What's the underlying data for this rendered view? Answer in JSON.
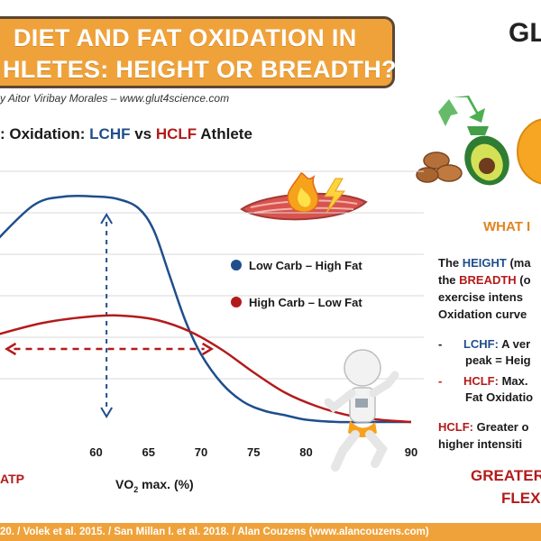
{
  "header": {
    "title_line1": "DIET AND FAT OXIDATION IN",
    "title_line2": "HLETES: HEIGHT OR BREADTH?",
    "brand": "GL",
    "byline": "y Aitor Viribay Morales – www.glut4science.com"
  },
  "chart_title": {
    "prefix": ": Oxidation: ",
    "lchf": "LCHF",
    "vs": " vs ",
    "hclf": "HCLF",
    "suffix": " Athlete"
  },
  "colors": {
    "lchf": "#1f4e8c",
    "hclf": "#b31b1b",
    "accent": "#f0a23a",
    "grid": "#d9d9d9"
  },
  "chart_data": {
    "type": "line",
    "title": "Oxidation: LCHF vs HCLF Athlete",
    "xlabel": "VO2 max. (%)",
    "xlabel_main": "VO",
    "xlabel_sub": "2",
    "xlabel_rest": " max. (%)",
    "xlim": [
      50,
      90
    ],
    "ylim": [
      0,
      1
    ],
    "x_ticks": [
      60,
      65,
      70,
      75,
      80,
      90
    ],
    "x_tick_labels": [
      "60",
      "65",
      "70",
      "75",
      "80",
      "90"
    ],
    "series": [
      {
        "name": "Low Carb – High Fat",
        "color": "#1f4e8c",
        "x": [
          50,
          54,
          57,
          60,
          62,
          64,
          65.5,
          67,
          68.5,
          70,
          72,
          74,
          76,
          78,
          80,
          83,
          86,
          90
        ],
        "values": [
          0.78,
          0.96,
          1.0,
          1.0,
          0.99,
          0.95,
          0.85,
          0.65,
          0.45,
          0.3,
          0.17,
          0.09,
          0.05,
          0.03,
          0.01,
          0.0,
          0.0,
          0.0
        ]
      },
      {
        "name": "High Carb – Low Fat",
        "color": "#b31b1b",
        "x": [
          50,
          55,
          60,
          63,
          66,
          69,
          72,
          75,
          78,
          81,
          84,
          87,
          90
        ],
        "values": [
          0.38,
          0.44,
          0.47,
          0.47,
          0.45,
          0.4,
          0.32,
          0.22,
          0.13,
          0.07,
          0.03,
          0.01,
          0.0
        ]
      }
    ],
    "annotations": [
      {
        "type": "height-arrow",
        "x": 61,
        "from": 0.0,
        "to": 1.0,
        "color": "#1f4e8c"
      },
      {
        "type": "breadth-arrow",
        "y": 0.34,
        "from": 51.5,
        "to": 71,
        "color": "#b31b1b"
      }
    ],
    "bottom_label": "ATP"
  },
  "legend": {
    "lchf": "Low Carb – High Fat",
    "hclf": "High Carb – Low Fat"
  },
  "side_panel": {
    "heading": "WHAT I",
    "line1_prefix": "The ",
    "line1_key": "HEIGHT",
    "line1_rest": " (ma",
    "line2_prefix": "the ",
    "line2_key": "BREADTH",
    "line2_rest": " (o",
    "line3": "exercise intens",
    "line4": "Oxidation curve",
    "bullet1_dash": "-",
    "bullet1_key": "LCHF:",
    "bullet1_rest": " A ver",
    "bullet1_line2": "peak = Heig",
    "bullet2_dash": "-",
    "bullet2_key": "HCLF:",
    "bullet2_rest": " Max.",
    "bullet2_line2": "Fat Oxidatio",
    "closing_key": "HCLF:",
    "closing_rest": " Greater o",
    "closing_line2": "higher intensiti",
    "greater_line1": "GREATER",
    "greater_line2": "FLEX"
  },
  "footer": {
    "text": "20. / Volek et al. 2015. / San Millan I. et al. 2018. / Alan Couzens (www.alancouzens.com)"
  }
}
